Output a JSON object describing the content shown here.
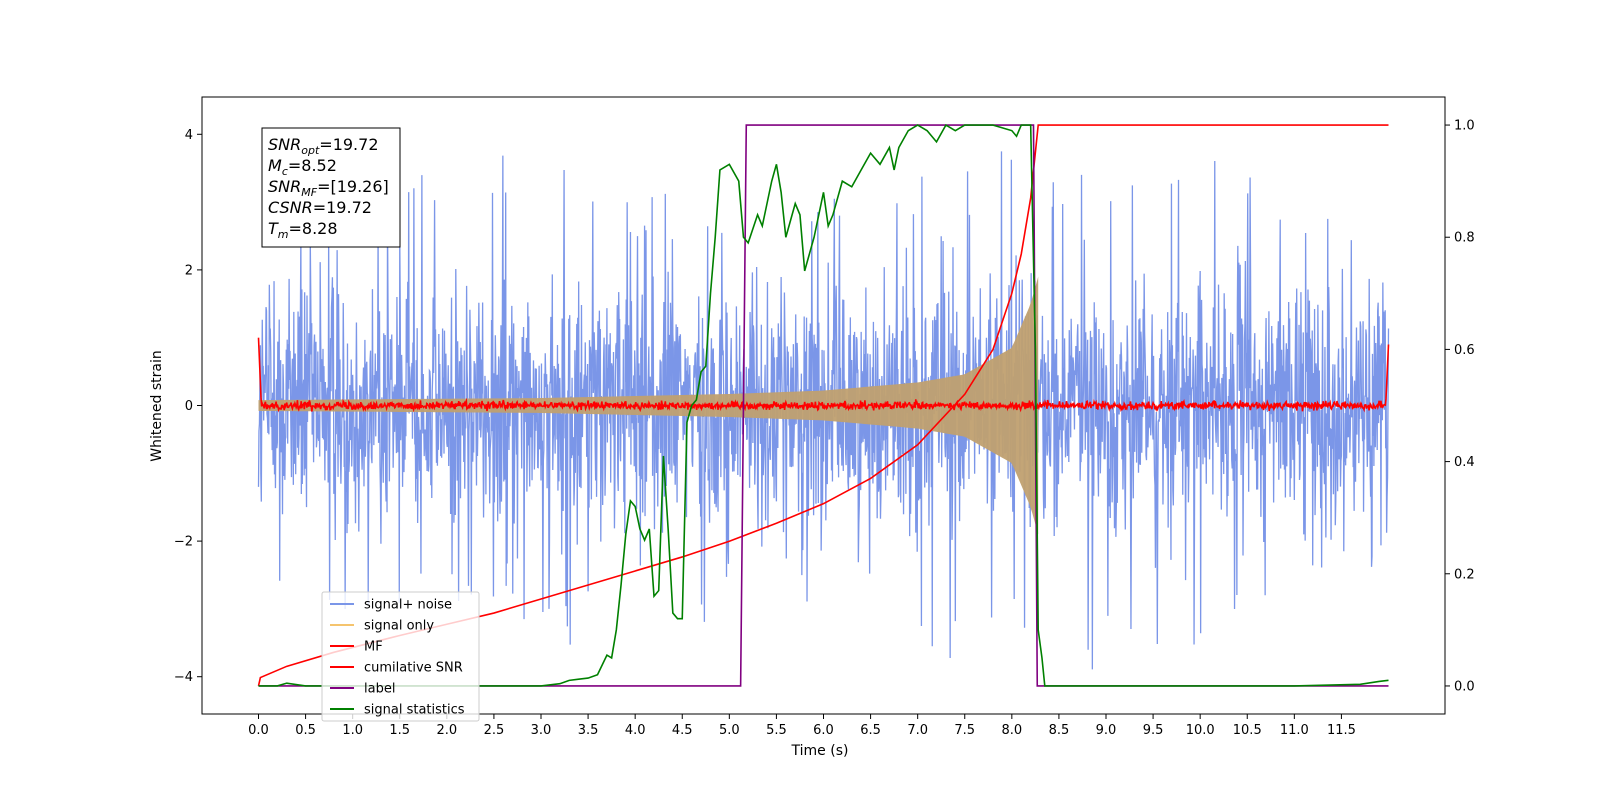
{
  "chart_data": {
    "type": "line",
    "xlabel": "Time (s)",
    "ylabel_left": "Whitened strain",
    "ylabel_right": "",
    "xlim": [
      -0.6,
      12.6
    ],
    "ylim_left": [
      -4.55,
      4.55
    ],
    "ylim_right": [
      -0.05,
      1.05
    ],
    "x_ticks": [
      0.0,
      0.5,
      1.0,
      1.5,
      2.0,
      2.5,
      3.0,
      3.5,
      4.0,
      4.5,
      5.0,
      5.5,
      6.0,
      6.5,
      7.0,
      7.5,
      8.0,
      8.5,
      9.0,
      9.5,
      10.0,
      10.5,
      11.0,
      11.5
    ],
    "x_tick_labels": [
      "0.0",
      "0.5",
      "1.0",
      "1.5",
      "2.0",
      "2.5",
      "3.0",
      "3.5",
      "4.0",
      "4.5",
      "5.0",
      "5.5",
      "6.0",
      "6.5",
      "7.0",
      "7.5",
      "8.0",
      "8.5",
      "9.0",
      "9.5",
      "10.0",
      "10.5",
      "11.0",
      "11.5"
    ],
    "y_ticks_left": [
      -4,
      -2,
      0,
      2,
      4
    ],
    "y_tick_labels_left": [
      "−4",
      "−2",
      "0",
      "2",
      "4"
    ],
    "y_ticks_right": [
      0.0,
      0.2,
      0.4,
      0.6,
      0.8,
      1.0
    ],
    "y_tick_labels_right": [
      "0.0",
      "0.2",
      "0.4",
      "0.6",
      "0.8",
      "1.0"
    ],
    "grid": false,
    "legend_position": "lower-left",
    "series": [
      {
        "name": "signal+ noise",
        "axis": "left",
        "color": "#7b96e8",
        "description_kind": "noise_band",
        "x_range": [
          0.0,
          12.0
        ],
        "envelope_upper": [
          [
            0.0,
            2.2
          ],
          [
            0.5,
            2.6
          ],
          [
            1.0,
            2.9
          ],
          [
            1.5,
            3.0
          ],
          [
            2.0,
            3.9
          ],
          [
            3.0,
            4.1
          ],
          [
            4.0,
            3.2
          ],
          [
            5.0,
            3.0
          ],
          [
            6.0,
            3.1
          ],
          [
            7.0,
            3.4
          ],
          [
            8.0,
            4.0
          ],
          [
            9.0,
            3.2
          ],
          [
            10.0,
            3.4
          ],
          [
            10.5,
            4.1
          ],
          [
            11.0,
            3.3
          ],
          [
            12.0,
            3.1
          ]
        ],
        "envelope_lower": [
          [
            0.0,
            -2.6
          ],
          [
            0.2,
            -3.4
          ],
          [
            1.0,
            -3.1
          ],
          [
            2.0,
            -3.3
          ],
          [
            3.0,
            -3.5
          ],
          [
            4.0,
            -3.7
          ],
          [
            4.2,
            -4.0
          ],
          [
            5.0,
            -3.3
          ],
          [
            6.0,
            -3.7
          ],
          [
            7.0,
            -4.1
          ],
          [
            8.0,
            -3.5
          ],
          [
            9.0,
            -4.1
          ],
          [
            10.0,
            -3.6
          ],
          [
            11.0,
            -3.5
          ],
          [
            12.0,
            -2.6
          ]
        ]
      },
      {
        "name": "signal only",
        "axis": "left",
        "color": "#f5c46e",
        "description_kind": "chirp",
        "x_range": [
          0.0,
          8.28
        ],
        "amplitude_points": [
          [
            0.0,
            0.08
          ],
          [
            3.0,
            0.11
          ],
          [
            5.0,
            0.17
          ],
          [
            6.0,
            0.22
          ],
          [
            7.0,
            0.34
          ],
          [
            7.5,
            0.46
          ],
          [
            8.0,
            0.85
          ],
          [
            8.2,
            1.5
          ],
          [
            8.28,
            1.9
          ]
        ]
      },
      {
        "name": "MF",
        "axis": "left",
        "color": "#ff0000",
        "description_kind": "noisy_flat",
        "x_range": [
          0.0,
          12.0
        ],
        "level": 0.0,
        "edge_values": [
          [
            0.0,
            1.0
          ],
          [
            0.03,
            0.0
          ],
          [
            11.97,
            0.0
          ],
          [
            12.0,
            0.9
          ]
        ]
      },
      {
        "name": "cumilative SNR",
        "axis": "right",
        "color": "#ff0000",
        "points": [
          [
            0.0,
            0.0
          ],
          [
            0.02,
            0.015
          ],
          [
            0.3,
            0.035
          ],
          [
            0.8,
            0.06
          ],
          [
            1.5,
            0.09
          ],
          [
            2.0,
            0.11
          ],
          [
            2.5,
            0.13
          ],
          [
            3.0,
            0.155
          ],
          [
            3.5,
            0.18
          ],
          [
            4.0,
            0.205
          ],
          [
            4.5,
            0.23
          ],
          [
            5.0,
            0.258
          ],
          [
            5.5,
            0.29
          ],
          [
            6.0,
            0.325
          ],
          [
            6.5,
            0.37
          ],
          [
            7.0,
            0.43
          ],
          [
            7.5,
            0.52
          ],
          [
            7.8,
            0.6
          ],
          [
            8.0,
            0.7
          ],
          [
            8.1,
            0.77
          ],
          [
            8.2,
            0.87
          ],
          [
            8.28,
            1.0
          ],
          [
            12.0,
            1.0
          ]
        ]
      },
      {
        "name": "label",
        "axis": "right",
        "color": "#800080",
        "points": [
          [
            0.0,
            0.0
          ],
          [
            5.12,
            0.0
          ],
          [
            5.18,
            1.0
          ],
          [
            8.23,
            1.0
          ],
          [
            8.27,
            0.0
          ],
          [
            12.0,
            0.0
          ]
        ]
      },
      {
        "name": "signal statistics",
        "axis": "right",
        "color": "#008000",
        "points": [
          [
            0.0,
            0.0
          ],
          [
            0.2,
            0.0
          ],
          [
            0.3,
            0.005
          ],
          [
            0.5,
            0.0
          ],
          [
            1.0,
            0.0
          ],
          [
            2.0,
            0.0
          ],
          [
            3.0,
            0.0
          ],
          [
            3.2,
            0.004
          ],
          [
            3.3,
            0.01
          ],
          [
            3.4,
            0.012
          ],
          [
            3.5,
            0.014
          ],
          [
            3.6,
            0.02
          ],
          [
            3.7,
            0.055
          ],
          [
            3.75,
            0.05
          ],
          [
            3.8,
            0.1
          ],
          [
            3.85,
            0.18
          ],
          [
            3.9,
            0.27
          ],
          [
            3.95,
            0.33
          ],
          [
            4.0,
            0.32
          ],
          [
            4.05,
            0.28
          ],
          [
            4.1,
            0.26
          ],
          [
            4.15,
            0.28
          ],
          [
            4.2,
            0.16
          ],
          [
            4.25,
            0.17
          ],
          [
            4.3,
            0.41
          ],
          [
            4.35,
            0.28
          ],
          [
            4.4,
            0.13
          ],
          [
            4.45,
            0.12
          ],
          [
            4.5,
            0.12
          ],
          [
            4.55,
            0.47
          ],
          [
            4.6,
            0.5
          ],
          [
            4.65,
            0.51
          ],
          [
            4.7,
            0.56
          ],
          [
            4.75,
            0.57
          ],
          [
            4.8,
            0.7
          ],
          [
            4.85,
            0.8
          ],
          [
            4.9,
            0.92
          ],
          [
            5.0,
            0.93
          ],
          [
            5.1,
            0.9
          ],
          [
            5.15,
            0.8
          ],
          [
            5.2,
            0.79
          ],
          [
            5.3,
            0.84
          ],
          [
            5.35,
            0.82
          ],
          [
            5.45,
            0.9
          ],
          [
            5.5,
            0.93
          ],
          [
            5.55,
            0.88
          ],
          [
            5.6,
            0.8
          ],
          [
            5.7,
            0.86
          ],
          [
            5.75,
            0.84
          ],
          [
            5.8,
            0.74
          ],
          [
            5.9,
            0.8
          ],
          [
            6.0,
            0.88
          ],
          [
            6.05,
            0.82
          ],
          [
            6.1,
            0.84
          ],
          [
            6.2,
            0.9
          ],
          [
            6.3,
            0.89
          ],
          [
            6.4,
            0.92
          ],
          [
            6.5,
            0.95
          ],
          [
            6.6,
            0.93
          ],
          [
            6.7,
            0.96
          ],
          [
            6.75,
            0.92
          ],
          [
            6.8,
            0.96
          ],
          [
            6.9,
            0.99
          ],
          [
            7.0,
            1.0
          ],
          [
            7.1,
            0.99
          ],
          [
            7.2,
            0.97
          ],
          [
            7.3,
            1.0
          ],
          [
            7.4,
            0.99
          ],
          [
            7.5,
            1.0
          ],
          [
            7.8,
            1.0
          ],
          [
            7.9,
            0.995
          ],
          [
            8.0,
            0.99
          ],
          [
            8.05,
            0.98
          ],
          [
            8.1,
            1.0
          ],
          [
            8.2,
            1.0
          ],
          [
            8.25,
            0.6
          ],
          [
            8.28,
            0.1
          ],
          [
            8.32,
            0.05
          ],
          [
            8.35,
            0.0
          ],
          [
            9.0,
            0.0
          ],
          [
            10.0,
            0.0
          ],
          [
            11.0,
            0.0
          ],
          [
            11.7,
            0.003
          ],
          [
            11.9,
            0.008
          ],
          [
            12.0,
            0.01
          ]
        ]
      }
    ],
    "annotation": {
      "lines": [
        {
          "base": "SNR",
          "sub": "opt",
          "value": "=19.72"
        },
        {
          "base": "M",
          "sub": "c",
          "value": "=8.52"
        },
        {
          "base": "SNR",
          "sub": "MF",
          "value": "=[19.26]"
        },
        {
          "base": "CSNR",
          "sub": "",
          "value": "=19.72"
        },
        {
          "base": "T",
          "sub": "m",
          "value": "=8.28"
        }
      ]
    }
  }
}
